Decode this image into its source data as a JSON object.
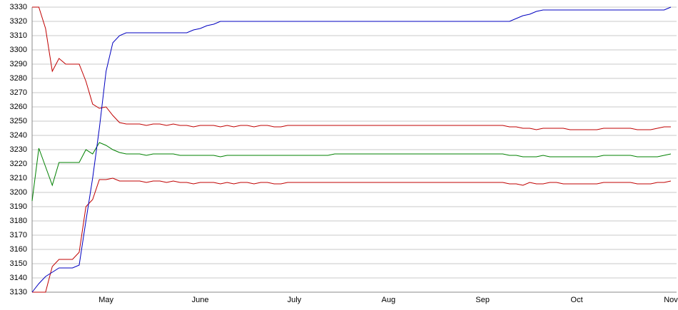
{
  "chart_data": {
    "type": "line",
    "categories": [
      null,
      null,
      null,
      null,
      null,
      null,
      null,
      null,
      null,
      null,
      null,
      "May",
      null,
      null,
      null,
      null,
      null,
      null,
      null,
      null,
      null,
      null,
      null,
      null,
      null,
      "June",
      null,
      null,
      null,
      null,
      null,
      null,
      null,
      null,
      null,
      null,
      null,
      null,
      null,
      "July",
      null,
      null,
      null,
      null,
      null,
      null,
      null,
      null,
      null,
      null,
      null,
      null,
      null,
      "Aug",
      null,
      null,
      null,
      null,
      null,
      null,
      null,
      null,
      null,
      null,
      null,
      null,
      null,
      "Sep",
      null,
      null,
      null,
      null,
      null,
      null,
      null,
      null,
      null,
      null,
      null,
      null,
      null,
      "Oct",
      null,
      null,
      null,
      null,
      null,
      null,
      null,
      null,
      null,
      null,
      null,
      null,
      null,
      "Nov"
    ],
    "series": [
      {
        "color": "#c00000",
        "values": [
          3330,
          3330,
          3315,
          3285,
          3294,
          3290,
          3290,
          3290,
          3278,
          3262,
          3259,
          3260,
          3254,
          3249,
          3248,
          3248,
          3248,
          3247,
          3248,
          3248,
          3247,
          3248,
          3247,
          3247,
          3246,
          3247,
          3247,
          3247,
          3246,
          3247,
          3246,
          3247,
          3247,
          3246,
          3247,
          3247,
          3246,
          3246,
          3247,
          3247,
          3247,
          3247,
          3247,
          3247,
          3247,
          3247,
          3247,
          3247,
          3247,
          3247,
          3247,
          3247,
          3247,
          3247,
          3247,
          3247,
          3247,
          3247,
          3247,
          3247,
          3247,
          3247,
          3247,
          3247,
          3247,
          3247,
          3247,
          3247,
          3247,
          3247,
          3247,
          3246,
          3246,
          3245,
          3245,
          3244,
          3245,
          3245,
          3245,
          3245,
          3244,
          3244,
          3244,
          3244,
          3244,
          3245,
          3245,
          3245,
          3245,
          3245,
          3244,
          3244,
          3244,
          3245,
          3246,
          3246
        ]
      },
      {
        "color": "#008000",
        "values": [
          3194,
          3231,
          3218,
          3205,
          3221,
          3221,
          3221,
          3221,
          3230,
          3227,
          3235,
          3233,
          3230,
          3228,
          3227,
          3227,
          3227,
          3226,
          3227,
          3227,
          3227,
          3227,
          3226,
          3226,
          3226,
          3226,
          3226,
          3226,
          3225,
          3226,
          3226,
          3226,
          3226,
          3226,
          3226,
          3226,
          3226,
          3226,
          3226,
          3226,
          3226,
          3226,
          3226,
          3226,
          3226,
          3227,
          3227,
          3227,
          3227,
          3227,
          3227,
          3227,
          3227,
          3227,
          3227,
          3227,
          3227,
          3227,
          3227,
          3227,
          3227,
          3227,
          3227,
          3227,
          3227,
          3227,
          3227,
          3227,
          3227,
          3227,
          3227,
          3226,
          3226,
          3225,
          3225,
          3225,
          3226,
          3225,
          3225,
          3225,
          3225,
          3225,
          3225,
          3225,
          3225,
          3226,
          3226,
          3226,
          3226,
          3226,
          3225,
          3225,
          3225,
          3225,
          3226,
          3227
        ]
      },
      {
        "color": "#c00000",
        "values": [
          3130,
          3130,
          3130,
          3148,
          3153,
          3153,
          3153,
          3158,
          3190,
          3195,
          3209,
          3209,
          3210,
          3208,
          3208,
          3208,
          3208,
          3207,
          3208,
          3208,
          3207,
          3208,
          3207,
          3207,
          3206,
          3207,
          3207,
          3207,
          3206,
          3207,
          3206,
          3207,
          3207,
          3206,
          3207,
          3207,
          3206,
          3206,
          3207,
          3207,
          3207,
          3207,
          3207,
          3207,
          3207,
          3207,
          3207,
          3207,
          3207,
          3207,
          3207,
          3207,
          3207,
          3207,
          3207,
          3207,
          3207,
          3207,
          3207,
          3207,
          3207,
          3207,
          3207,
          3207,
          3207,
          3207,
          3207,
          3207,
          3207,
          3207,
          3207,
          3206,
          3206,
          3205,
          3207,
          3206,
          3206,
          3207,
          3207,
          3206,
          3206,
          3206,
          3206,
          3206,
          3206,
          3207,
          3207,
          3207,
          3207,
          3207,
          3206,
          3206,
          3206,
          3207,
          3207,
          3208
        ]
      },
      {
        "color": "#0000c0",
        "values": [
          3130,
          3136,
          3141,
          3144,
          3147,
          3147,
          3147,
          3149,
          3180,
          3210,
          3245,
          3285,
          3305,
          3310,
          3312,
          3312,
          3312,
          3312,
          3312,
          3312,
          3312,
          3312,
          3312,
          3312,
          3314,
          3315,
          3317,
          3318,
          3320,
          3320,
          3320,
          3320,
          3320,
          3320,
          3320,
          3320,
          3320,
          3320,
          3320,
          3320,
          3320,
          3320,
          3320,
          3320,
          3320,
          3320,
          3320,
          3320,
          3320,
          3320,
          3320,
          3320,
          3320,
          3320,
          3320,
          3320,
          3320,
          3320,
          3320,
          3320,
          3320,
          3320,
          3320,
          3320,
          3320,
          3320,
          3320,
          3320,
          3320,
          3320,
          3320,
          3320,
          3322,
          3324,
          3325,
          3327,
          3328,
          3328,
          3328,
          3328,
          3328,
          3328,
          3328,
          3328,
          3328,
          3328,
          3328,
          3328,
          3328,
          3328,
          3328,
          3328,
          3328,
          3328,
          3328,
          3330
        ]
      }
    ],
    "ylim": [
      3130,
      3330
    ],
    "yticks": [
      3130,
      3140,
      3150,
      3160,
      3170,
      3180,
      3190,
      3200,
      3210,
      3220,
      3230,
      3240,
      3250,
      3260,
      3270,
      3280,
      3290,
      3300,
      3310,
      3320,
      3330
    ],
    "grid": true
  }
}
